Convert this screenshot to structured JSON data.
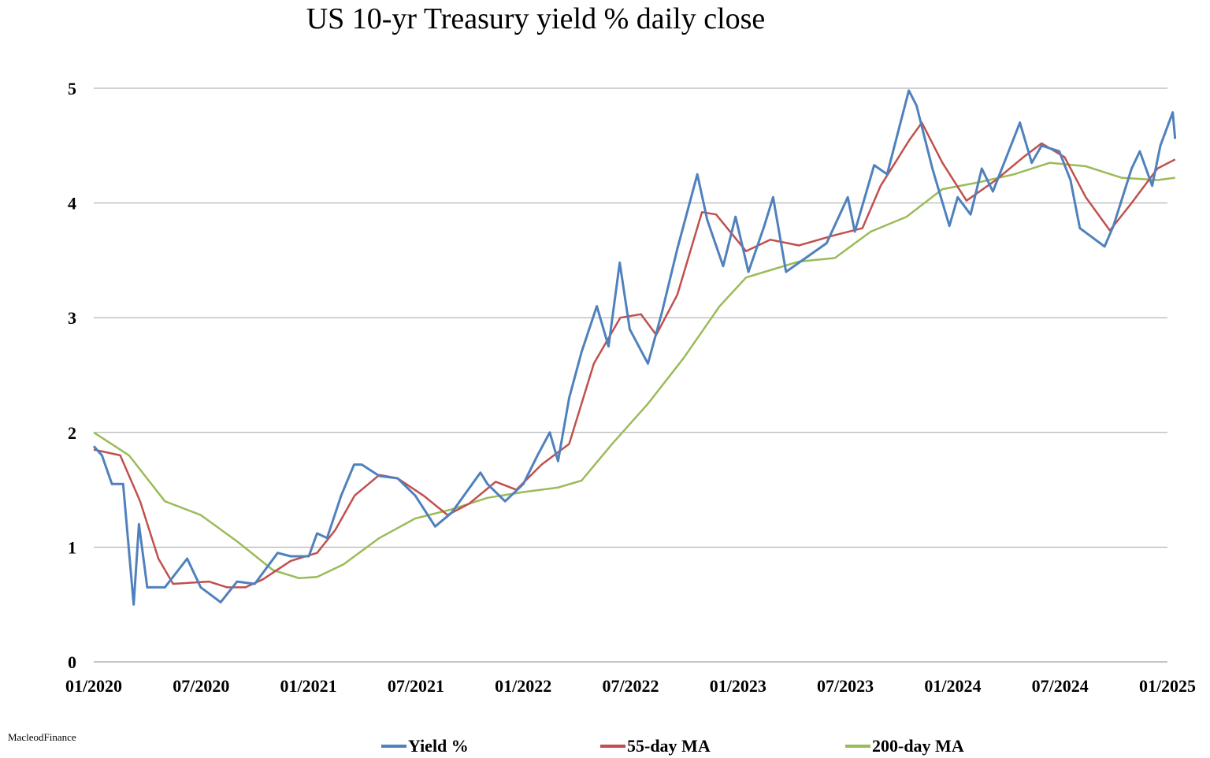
{
  "chart_data": {
    "type": "line",
    "title": "US 10-yr Treasury yield % daily close",
    "xlabel": "",
    "ylabel": "",
    "xlim": [
      "2020-01-01",
      "2025-01-01"
    ],
    "ylim": [
      0,
      5
    ],
    "x_ticks": [
      "01/2020",
      "07/2020",
      "01/2021",
      "07/2021",
      "01/2022",
      "07/2022",
      "01/2023",
      "07/2023",
      "01/2024",
      "07/2024",
      "01/2025"
    ],
    "y_ticks": [
      "0",
      "1",
      "2",
      "3",
      "4",
      "5"
    ],
    "grid": "horizontal",
    "legend_position": "bottom",
    "series": [
      {
        "name": "Yield %",
        "color": "#4f81bd",
        "points": [
          [
            "2020-01-01",
            1.88
          ],
          [
            "2020-01-15",
            1.8
          ],
          [
            "2020-02-01",
            1.55
          ],
          [
            "2020-02-20",
            1.55
          ],
          [
            "2020-03-09",
            0.5
          ],
          [
            "2020-03-18",
            1.2
          ],
          [
            "2020-04-01",
            0.65
          ],
          [
            "2020-05-01",
            0.65
          ],
          [
            "2020-06-08",
            0.9
          ],
          [
            "2020-07-01",
            0.65
          ],
          [
            "2020-08-04",
            0.52
          ],
          [
            "2020-09-01",
            0.7
          ],
          [
            "2020-10-01",
            0.68
          ],
          [
            "2020-11-09",
            0.95
          ],
          [
            "2020-12-01",
            0.92
          ],
          [
            "2021-01-01",
            0.92
          ],
          [
            "2021-01-15",
            1.12
          ],
          [
            "2021-02-01",
            1.08
          ],
          [
            "2021-02-25",
            1.45
          ],
          [
            "2021-03-19",
            1.72
          ],
          [
            "2021-04-01",
            1.72
          ],
          [
            "2021-05-01",
            1.62
          ],
          [
            "2021-06-01",
            1.6
          ],
          [
            "2021-07-01",
            1.45
          ],
          [
            "2021-08-04",
            1.18
          ],
          [
            "2021-09-01",
            1.3
          ],
          [
            "2021-10-20",
            1.65
          ],
          [
            "2021-11-01",
            1.55
          ],
          [
            "2021-12-01",
            1.4
          ],
          [
            "2022-01-01",
            1.55
          ],
          [
            "2022-01-25",
            1.8
          ],
          [
            "2022-02-15",
            2.0
          ],
          [
            "2022-03-01",
            1.75
          ],
          [
            "2022-03-20",
            2.3
          ],
          [
            "2022-04-10",
            2.7
          ],
          [
            "2022-05-06",
            3.1
          ],
          [
            "2022-05-26",
            2.75
          ],
          [
            "2022-06-14",
            3.48
          ],
          [
            "2022-07-01",
            2.9
          ],
          [
            "2022-08-01",
            2.6
          ],
          [
            "2022-08-25",
            3.05
          ],
          [
            "2022-09-20",
            3.6
          ],
          [
            "2022-10-24",
            4.25
          ],
          [
            "2022-11-10",
            3.85
          ],
          [
            "2022-12-07",
            3.45
          ],
          [
            "2022-12-28",
            3.88
          ],
          [
            "2023-01-19",
            3.4
          ],
          [
            "2023-02-15",
            3.8
          ],
          [
            "2023-03-02",
            4.05
          ],
          [
            "2023-03-24",
            3.4
          ],
          [
            "2023-06-01",
            3.65
          ],
          [
            "2023-07-07",
            4.05
          ],
          [
            "2023-07-19",
            3.75
          ],
          [
            "2023-08-21",
            4.33
          ],
          [
            "2023-09-12",
            4.25
          ],
          [
            "2023-10-19",
            4.98
          ],
          [
            "2023-11-01",
            4.85
          ],
          [
            "2023-11-28",
            4.3
          ],
          [
            "2023-12-27",
            3.8
          ],
          [
            "2024-01-10",
            4.05
          ],
          [
            "2024-02-01",
            3.9
          ],
          [
            "2024-02-20",
            4.3
          ],
          [
            "2024-03-10",
            4.1
          ],
          [
            "2024-04-25",
            4.7
          ],
          [
            "2024-05-15",
            4.35
          ],
          [
            "2024-06-01",
            4.5
          ],
          [
            "2024-07-01",
            4.45
          ],
          [
            "2024-07-20",
            4.2
          ],
          [
            "2024-08-05",
            3.78
          ],
          [
            "2024-09-16",
            3.62
          ],
          [
            "2024-10-01",
            3.8
          ],
          [
            "2024-11-01",
            4.3
          ],
          [
            "2024-11-15",
            4.45
          ],
          [
            "2024-12-06",
            4.15
          ],
          [
            "2024-12-20",
            4.5
          ],
          [
            "2025-01-10",
            4.79
          ],
          [
            "2025-01-14",
            4.56
          ]
        ]
      },
      {
        "name": "55-day MA",
        "color": "#c0504d",
        "points": [
          [
            "2020-01-01",
            1.85
          ],
          [
            "2020-02-15",
            1.8
          ],
          [
            "2020-03-20",
            1.4
          ],
          [
            "2020-04-20",
            0.9
          ],
          [
            "2020-05-15",
            0.68
          ],
          [
            "2020-07-15",
            0.7
          ],
          [
            "2020-08-15",
            0.65
          ],
          [
            "2020-09-15",
            0.65
          ],
          [
            "2020-10-15",
            0.72
          ],
          [
            "2020-12-01",
            0.88
          ],
          [
            "2021-01-15",
            0.95
          ],
          [
            "2021-02-15",
            1.15
          ],
          [
            "2021-03-20",
            1.45
          ],
          [
            "2021-05-01",
            1.63
          ],
          [
            "2021-06-01",
            1.6
          ],
          [
            "2021-07-15",
            1.45
          ],
          [
            "2021-08-25",
            1.28
          ],
          [
            "2021-10-01",
            1.38
          ],
          [
            "2021-11-15",
            1.57
          ],
          [
            "2021-12-20",
            1.5
          ],
          [
            "2022-02-01",
            1.72
          ],
          [
            "2022-03-20",
            1.9
          ],
          [
            "2022-05-01",
            2.6
          ],
          [
            "2022-06-15",
            3.0
          ],
          [
            "2022-07-20",
            3.03
          ],
          [
            "2022-08-15",
            2.85
          ],
          [
            "2022-09-20",
            3.2
          ],
          [
            "2022-11-01",
            3.92
          ],
          [
            "2022-11-25",
            3.9
          ],
          [
            "2023-01-15",
            3.58
          ],
          [
            "2023-02-25",
            3.68
          ],
          [
            "2023-04-15",
            3.63
          ],
          [
            "2023-06-15",
            3.72
          ],
          [
            "2023-08-01",
            3.78
          ],
          [
            "2023-09-01",
            4.15
          ],
          [
            "2023-10-20",
            4.55
          ],
          [
            "2023-11-10",
            4.7
          ],
          [
            "2023-12-15",
            4.35
          ],
          [
            "2024-01-25",
            4.02
          ],
          [
            "2024-03-15",
            4.2
          ],
          [
            "2024-05-01",
            4.4
          ],
          [
            "2024-06-01",
            4.52
          ],
          [
            "2024-07-10",
            4.4
          ],
          [
            "2024-08-15",
            4.05
          ],
          [
            "2024-09-25",
            3.76
          ],
          [
            "2024-11-01",
            4.0
          ],
          [
            "2024-12-15",
            4.3
          ],
          [
            "2025-01-14",
            4.38
          ]
        ]
      },
      {
        "name": "200-day MA",
        "color": "#9bbb59",
        "points": [
          [
            "2020-01-01",
            2.0
          ],
          [
            "2020-03-01",
            1.8
          ],
          [
            "2020-05-01",
            1.4
          ],
          [
            "2020-07-01",
            1.28
          ],
          [
            "2020-09-01",
            1.05
          ],
          [
            "2020-11-01",
            0.8
          ],
          [
            "2020-12-15",
            0.73
          ],
          [
            "2021-01-15",
            0.74
          ],
          [
            "2021-03-01",
            0.85
          ],
          [
            "2021-05-01",
            1.08
          ],
          [
            "2021-07-01",
            1.25
          ],
          [
            "2021-09-01",
            1.33
          ],
          [
            "2021-11-01",
            1.43
          ],
          [
            "2022-01-01",
            1.48
          ],
          [
            "2022-03-01",
            1.52
          ],
          [
            "2022-04-10",
            1.58
          ],
          [
            "2022-06-01",
            1.9
          ],
          [
            "2022-08-01",
            2.25
          ],
          [
            "2022-10-01",
            2.65
          ],
          [
            "2022-12-01",
            3.1
          ],
          [
            "2023-01-15",
            3.35
          ],
          [
            "2023-03-01",
            3.42
          ],
          [
            "2023-04-15",
            3.49
          ],
          [
            "2023-06-15",
            3.52
          ],
          [
            "2023-08-15",
            3.75
          ],
          [
            "2023-10-15",
            3.88
          ],
          [
            "2023-12-15",
            4.12
          ],
          [
            "2024-02-15",
            4.18
          ],
          [
            "2024-04-15",
            4.25
          ],
          [
            "2024-06-15",
            4.35
          ],
          [
            "2024-08-15",
            4.32
          ],
          [
            "2024-10-15",
            4.22
          ],
          [
            "2024-12-15",
            4.2
          ],
          [
            "2025-01-14",
            4.22
          ]
        ]
      }
    ]
  },
  "credit": "MacleodFinance"
}
